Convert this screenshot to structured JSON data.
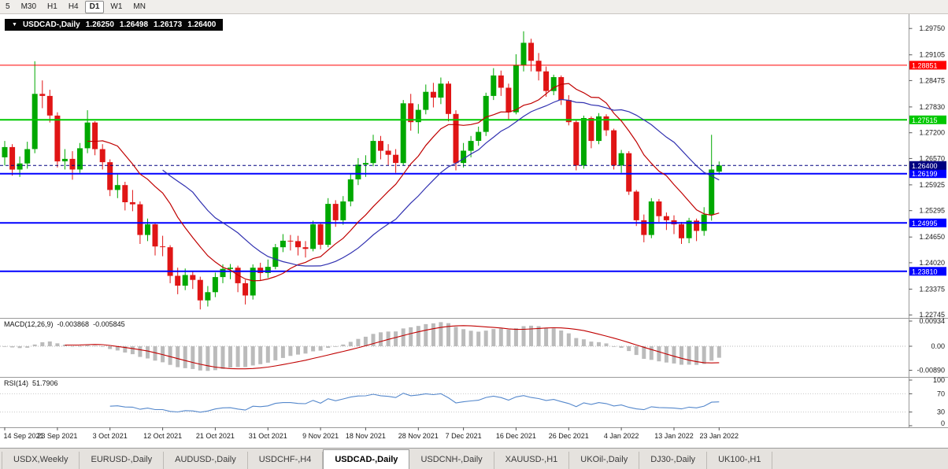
{
  "colors": {
    "up": "#00A800",
    "down": "#E01515",
    "ma_fast": "#C00000",
    "ma_slow": "#3030B0",
    "macd_bar": "#BBBBBB",
    "macd_signal": "#C00000",
    "rsi_line": "#5588CC",
    "current_price_bg": "#000080",
    "axis_line": "#9A9A9A"
  },
  "toolbar": {
    "timeframes": [
      {
        "label": "5",
        "active": false
      },
      {
        "label": "M30",
        "active": false
      },
      {
        "label": "H1",
        "active": false
      },
      {
        "label": "H4",
        "active": false
      },
      {
        "label": "D1",
        "active": true
      },
      {
        "label": "W1",
        "active": false
      },
      {
        "label": "MN",
        "active": false
      }
    ]
  },
  "chart_header": {
    "title": "USDCAD-,Daily",
    "open": "1.26250",
    "high": "1.26498",
    "low": "1.26173",
    "close": "1.26400"
  },
  "indicators": {
    "macd": {
      "name": "MACD(12,26,9)",
      "value_main": "-0.003868",
      "value_signal": "-0.005845",
      "axis_ticks": [
        "0.00934",
        "0.00",
        "-0.00890"
      ]
    },
    "rsi": {
      "name": "RSI(14)",
      "value": "51.7906",
      "axis_ticks": [
        "100",
        "70",
        "30",
        "0"
      ],
      "levels": [
        70,
        30
      ]
    }
  },
  "price_axis_ticks": [
    "1.29750",
    "1.29105",
    "1.28475",
    "1.27830",
    "1.27200",
    "1.26570",
    "1.25925",
    "1.25295",
    "1.24650",
    "1.24020",
    "1.23375",
    "1.22745"
  ],
  "timeline": [
    {
      "i": 0,
      "t": "14 Sep 2021"
    },
    {
      "i": 7,
      "t": "23 Sep 2021"
    },
    {
      "i": 14,
      "t": "3 Oct 2021"
    },
    {
      "i": 21,
      "t": "12 Oct 2021"
    },
    {
      "i": 28,
      "t": "21 Oct 2021"
    },
    {
      "i": 35,
      "t": "31 Oct 2021"
    },
    {
      "i": 42,
      "t": "9 Nov 2021"
    },
    {
      "i": 48,
      "t": "18 Nov 2021"
    },
    {
      "i": 55,
      "t": "28 Nov 2021"
    },
    {
      "i": 61,
      "t": "7 Dec 2021"
    },
    {
      "i": 68,
      "t": "16 Dec 2021"
    },
    {
      "i": 75,
      "t": "26 Dec 2021"
    },
    {
      "i": 82,
      "t": "4 Jan 2022"
    },
    {
      "i": 89,
      "t": "13 Jan 2022"
    },
    {
      "i": 95,
      "t": "23 Jan 2022"
    }
  ],
  "tabs": [
    {
      "label": "USDX,Weekly",
      "active": false
    },
    {
      "label": "EURUSD-,Daily",
      "active": false
    },
    {
      "label": "AUDUSD-,Daily",
      "active": false
    },
    {
      "label": "USDCHF-,H4",
      "active": false
    },
    {
      "label": "USDCAD-,Daily",
      "active": true
    },
    {
      "label": "USDCNH-,Daily",
      "active": false
    },
    {
      "label": "XAUUSD-,H1",
      "active": false
    },
    {
      "label": "UKOil-,Daily",
      "active": false
    },
    {
      "label": "DJ30-,Daily",
      "active": false
    },
    {
      "label": "UK100-,H1",
      "active": false
    }
  ],
  "chart_data": {
    "type": "candlestick",
    "symbol": "USDCAD-",
    "timeframe": "Daily",
    "title": "USDCAD-,Daily",
    "last_candle": {
      "open": 1.2625,
      "high": 1.26498,
      "low": 1.26173,
      "close": 1.264
    },
    "current_price": 1.264,
    "y_axis_range": [
      1.225,
      1.301
    ],
    "horizontal_lines": [
      {
        "price": 1.28851,
        "color": "#FF0000",
        "width": 1
      },
      {
        "price": 1.27515,
        "color": "#00C800",
        "width": 2
      },
      {
        "price": 1.26199,
        "color": "#0000FF",
        "width": 2
      },
      {
        "price": 1.24995,
        "color": "#0000FF",
        "width": 2
      },
      {
        "price": 1.2381,
        "color": "#0000FF",
        "width": 2
      }
    ],
    "moving_averages": [
      {
        "name": "fast",
        "period": 12,
        "color": "#C00000"
      },
      {
        "name": "slow",
        "period": 22,
        "color": "#3030B0"
      }
    ],
    "macd": {
      "fast": 12,
      "slow": 26,
      "signal": 9
    },
    "rsi_period": 14,
    "candles": [
      [
        1.266,
        1.27,
        1.264,
        1.2685
      ],
      [
        1.2685,
        1.2692,
        1.2615,
        1.263
      ],
      [
        1.263,
        1.2662,
        1.2612,
        1.2645
      ],
      [
        1.2645,
        1.2698,
        1.2632,
        1.268
      ],
      [
        1.268,
        1.2895,
        1.267,
        1.2815
      ],
      [
        1.2815,
        1.2848,
        1.278,
        1.281
      ],
      [
        1.281,
        1.2825,
        1.2745,
        1.2762
      ],
      [
        1.2762,
        1.277,
        1.2635,
        1.265
      ],
      [
        1.265,
        1.268,
        1.263,
        1.2656
      ],
      [
        1.2656,
        1.2675,
        1.2605,
        1.263
      ],
      [
        1.263,
        1.2695,
        1.2622,
        1.2682
      ],
      [
        1.2682,
        1.2775,
        1.267,
        1.2745
      ],
      [
        1.2745,
        1.2748,
        1.2665,
        1.268
      ],
      [
        1.268,
        1.2692,
        1.263,
        1.2648
      ],
      [
        1.2648,
        1.2655,
        1.2565,
        1.258
      ],
      [
        1.258,
        1.2618,
        1.256,
        1.2592
      ],
      [
        1.2592,
        1.26,
        1.253,
        1.255
      ],
      [
        1.255,
        1.258,
        1.2528,
        1.2545
      ],
      [
        1.2545,
        1.2552,
        1.2448,
        1.247
      ],
      [
        1.247,
        1.251,
        1.2455,
        1.2496
      ],
      [
        1.2496,
        1.25,
        1.242,
        1.2442
      ],
      [
        1.2442,
        1.2468,
        1.2418,
        1.244
      ],
      [
        1.244,
        1.2445,
        1.2352,
        1.237
      ],
      [
        1.237,
        1.239,
        1.2325,
        1.2346
      ],
      [
        1.2346,
        1.2388,
        1.2335,
        1.2372
      ],
      [
        1.2372,
        1.238,
        1.2338,
        1.236
      ],
      [
        1.236,
        1.2368,
        1.2288,
        1.231
      ],
      [
        1.231,
        1.2345,
        1.2295,
        1.233
      ],
      [
        1.233,
        1.2378,
        1.2318,
        1.2367
      ],
      [
        1.2367,
        1.2398,
        1.2352,
        1.2387
      ],
      [
        1.2387,
        1.2399,
        1.2362,
        1.239
      ],
      [
        1.239,
        1.2395,
        1.233,
        1.2352
      ],
      [
        1.2352,
        1.236,
        1.23,
        1.2322
      ],
      [
        1.2322,
        1.2398,
        1.2312,
        1.239
      ],
      [
        1.239,
        1.2402,
        1.2358,
        1.2377
      ],
      [
        1.2377,
        1.241,
        1.2365,
        1.2392
      ],
      [
        1.2392,
        1.2448,
        1.2386,
        1.244
      ],
      [
        1.244,
        1.2472,
        1.2428,
        1.2456
      ],
      [
        1.2456,
        1.247,
        1.2432,
        1.2455
      ],
      [
        1.2455,
        1.2468,
        1.242,
        1.244
      ],
      [
        1.244,
        1.2455,
        1.2415,
        1.2436
      ],
      [
        1.2436,
        1.2505,
        1.243,
        1.2496
      ],
      [
        1.2496,
        1.25,
        1.2435,
        1.2446
      ],
      [
        1.2446,
        1.256,
        1.244,
        1.2546
      ],
      [
        1.2546,
        1.2555,
        1.249,
        1.2506
      ],
      [
        1.2506,
        1.2565,
        1.2495,
        1.2552
      ],
      [
        1.2552,
        1.262,
        1.254,
        1.2606
      ],
      [
        1.2606,
        1.2658,
        1.2592,
        1.2642
      ],
      [
        1.2642,
        1.2665,
        1.2612,
        1.2646
      ],
      [
        1.2646,
        1.2715,
        1.2638,
        1.27
      ],
      [
        1.27,
        1.2712,
        1.2655,
        1.2676
      ],
      [
        1.2676,
        1.2692,
        1.264,
        1.2666
      ],
      [
        1.2666,
        1.268,
        1.2622,
        1.2646
      ],
      [
        1.2646,
        1.28,
        1.264,
        1.2792
      ],
      [
        1.2792,
        1.2815,
        1.2725,
        1.2746
      ],
      [
        1.2746,
        1.279,
        1.2718,
        1.2776
      ],
      [
        1.2776,
        1.2838,
        1.2765,
        1.282
      ],
      [
        1.282,
        1.2842,
        1.2782,
        1.2806
      ],
      [
        1.2806,
        1.2855,
        1.279,
        1.284
      ],
      [
        1.284,
        1.2846,
        1.2748,
        1.2766
      ],
      [
        1.2766,
        1.2775,
        1.2628,
        1.2646
      ],
      [
        1.2646,
        1.2695,
        1.2635,
        1.2676
      ],
      [
        1.2676,
        1.2712,
        1.266,
        1.27
      ],
      [
        1.27,
        1.2735,
        1.2688,
        1.2722
      ],
      [
        1.2722,
        1.2818,
        1.2712,
        1.281
      ],
      [
        1.281,
        1.2878,
        1.28,
        1.286
      ],
      [
        1.286,
        1.2872,
        1.281,
        1.283
      ],
      [
        1.283,
        1.284,
        1.2752,
        1.277
      ],
      [
        1.277,
        1.2912,
        1.2765,
        1.2886
      ],
      [
        1.2886,
        1.2968,
        1.287,
        1.294
      ],
      [
        1.294,
        1.295,
        1.287,
        1.2896
      ],
      [
        1.2896,
        1.2915,
        1.2848,
        1.287
      ],
      [
        1.287,
        1.2882,
        1.2808,
        1.2822
      ],
      [
        1.2822,
        1.2862,
        1.2812,
        1.2856
      ],
      [
        1.2856,
        1.286,
        1.2788,
        1.28
      ],
      [
        1.28,
        1.2812,
        1.2738,
        1.2746
      ],
      [
        1.2746,
        1.2752,
        1.2628,
        1.264
      ],
      [
        1.264,
        1.2762,
        1.2632,
        1.2756
      ],
      [
        1.2756,
        1.276,
        1.2682,
        1.27
      ],
      [
        1.27,
        1.2768,
        1.2692,
        1.276
      ],
      [
        1.276,
        1.2765,
        1.2712,
        1.2726
      ],
      [
        1.2726,
        1.273,
        1.263,
        1.264
      ],
      [
        1.264,
        1.2678,
        1.2622,
        1.267
      ],
      [
        1.267,
        1.2675,
        1.2568,
        1.2576
      ],
      [
        1.2576,
        1.258,
        1.2492,
        1.2506
      ],
      [
        1.2506,
        1.252,
        1.2452,
        1.247
      ],
      [
        1.247,
        1.256,
        1.2462,
        1.2552
      ],
      [
        1.2552,
        1.2558,
        1.2502,
        1.2516
      ],
      [
        1.2516,
        1.2525,
        1.2482,
        1.2506
      ],
      [
        1.2506,
        1.2518,
        1.2472,
        1.2496
      ],
      [
        1.2496,
        1.2502,
        1.2448,
        1.2462
      ],
      [
        1.2462,
        1.2512,
        1.245,
        1.2505
      ],
      [
        1.2505,
        1.251,
        1.2455,
        1.248
      ],
      [
        1.248,
        1.2538,
        1.2468,
        1.252
      ],
      [
        1.252,
        1.2715,
        1.2505,
        1.263
      ],
      [
        1.2625,
        1.26498,
        1.26173,
        1.264
      ]
    ]
  }
}
